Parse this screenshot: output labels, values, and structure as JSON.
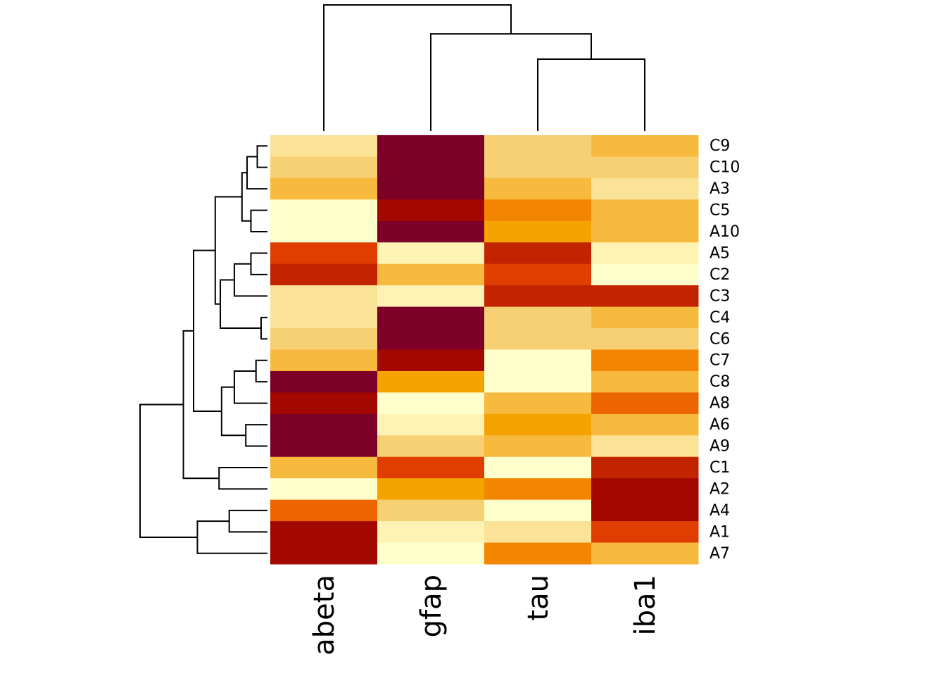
{
  "chart_data": {
    "type": "heatmap",
    "title": "",
    "color_scale": "YlOrRd (low = light yellow, high = dark red)",
    "palette": [
      "#FFFFCC",
      "#FFF3B4",
      "#FAE297",
      "#F7D073",
      "#F7B93E",
      "#F5A300",
      "#F38600",
      "#EC6500",
      "#E03E00",
      "#C22400",
      "#A20800",
      "#7D0028"
    ],
    "columns": [
      "abeta",
      "gfap",
      "tau",
      "iba1"
    ],
    "rows": [
      "C9",
      "C10",
      "A3",
      "C5",
      "A10",
      "A5",
      "C2",
      "C3",
      "C4",
      "C6",
      "C7",
      "C8",
      "A8",
      "A6",
      "A9",
      "C1",
      "A2",
      "A4",
      "A1",
      "A7"
    ],
    "values": [
      [
        2,
        11,
        3,
        4
      ],
      [
        3,
        11,
        3,
        3
      ],
      [
        4,
        11,
        4,
        2
      ],
      [
        0,
        10,
        6,
        4
      ],
      [
        0,
        11,
        5,
        4
      ],
      [
        8,
        1,
        9,
        1
      ],
      [
        9,
        4,
        8,
        0
      ],
      [
        2,
        1,
        9,
        9
      ],
      [
        2,
        11,
        3,
        4
      ],
      [
        3,
        11,
        3,
        3
      ],
      [
        4,
        10,
        0,
        6
      ],
      [
        11,
        5,
        0,
        4
      ],
      [
        10,
        0,
        4,
        7
      ],
      [
        11,
        1,
        5,
        4
      ],
      [
        11,
        3,
        4,
        2
      ],
      [
        4,
        8,
        0,
        9
      ],
      [
        0,
        5,
        6,
        10
      ],
      [
        7,
        3,
        0,
        10
      ],
      [
        10,
        1,
        2,
        8
      ],
      [
        10,
        0,
        6,
        4
      ]
    ],
    "value_range": [
      0,
      11
    ],
    "row_dendrogram": {
      "merges": [
        {
          "a": "C9",
          "b": "C10",
          "height": 0.08
        },
        {
          "a": "C9,C10",
          "b": "A3",
          "height": 0.16
        },
        {
          "a": "C5",
          "b": "A10",
          "height": 0.13
        },
        {
          "a": "C9,C10,A3",
          "b": "C5,A10",
          "height": 0.2
        },
        {
          "a": "A5",
          "b": "C2",
          "height": 0.13
        },
        {
          "a": "A5,C2",
          "b": "C3",
          "height": 0.26
        },
        {
          "a": "C4",
          "b": "C6",
          "height": 0.05
        },
        {
          "a": "A5,C2,C3",
          "b": "C4,C6",
          "height": 0.37
        },
        {
          "a": "C9,C10,A3,C5,A10",
          "b": "A5,C2,C3,C4,C6",
          "height": 0.41
        },
        {
          "a": "C7",
          "b": "C8",
          "height": 0.09
        },
        {
          "a": "C7,C8",
          "b": "A8",
          "height": 0.26
        },
        {
          "a": "A6",
          "b": "A9",
          "height": 0.17
        },
        {
          "a": "C7,C8,A8",
          "b": "A6,A9",
          "height": 0.36
        },
        {
          "a": "C9..C6",
          "b": "C7,C8,A8,A6,A9",
          "height": 0.58
        },
        {
          "a": "C1",
          "b": "A2",
          "height": 0.38
        },
        {
          "a": "C9..A9",
          "b": "C1,A2",
          "height": 0.66
        },
        {
          "a": "A4",
          "b": "A1",
          "height": 0.3
        },
        {
          "a": "A4,A1",
          "b": "A7",
          "height": 0.55
        },
        {
          "a": "C9..A2",
          "b": "A4,A1,A7",
          "height": 1.0
        }
      ]
    },
    "col_dendrogram": {
      "merges": [
        {
          "a": "tau",
          "b": "iba1",
          "height": 0.57
        },
        {
          "a": "gfap",
          "b": "tau,iba1",
          "height": 0.77
        },
        {
          "a": "abeta",
          "b": "gfap,tau,iba1",
          "height": 1.0
        }
      ]
    },
    "legend": "none",
    "grid": false
  }
}
